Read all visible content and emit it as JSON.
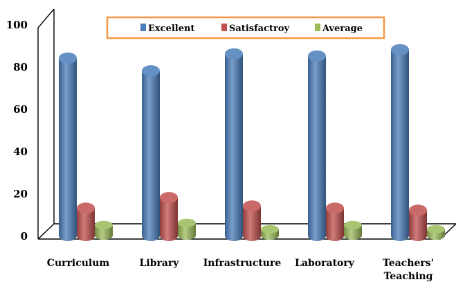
{
  "chart_data": {
    "type": "bar",
    "style": "3d-cylinder",
    "categories": [
      "Curriculum",
      "Library",
      "Infrastructure",
      "Laboratory",
      "Teachers' Teaching"
    ],
    "series": [
      {
        "name": "Excellent",
        "color": "#4a7ebb",
        "values": [
          84,
          78,
          86,
          85,
          88
        ]
      },
      {
        "name": "Satisfactroy",
        "color": "#c0504d",
        "values": [
          13,
          18,
          14,
          13,
          12
        ]
      },
      {
        "name": "Average",
        "color": "#9bbb59",
        "values": [
          5,
          6,
          3,
          5,
          3
        ]
      }
    ],
    "ylim": [
      0,
      100
    ],
    "yticks": [
      "0",
      "20",
      "40",
      "60",
      "80",
      "100"
    ],
    "grid": false,
    "legend_placement": "top-center",
    "legend_border_color": "#f79646"
  }
}
